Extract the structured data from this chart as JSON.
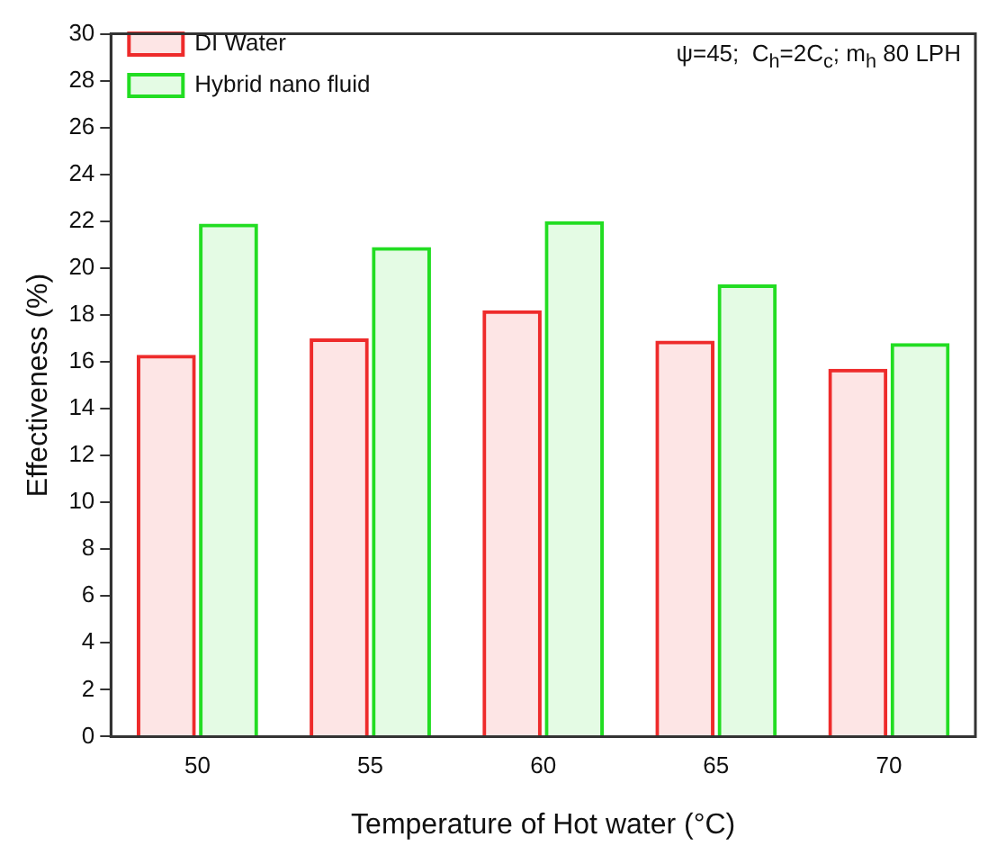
{
  "chart_data": {
    "type": "bar",
    "xlabel": "Temperature of Hot water (°C)",
    "ylabel": "Effectiveness (%)",
    "categories": [
      "50",
      "55",
      "60",
      "65",
      "70"
    ],
    "series": [
      {
        "name": "DI Water",
        "color": "#ee2b2b",
        "values": [
          16.3,
          17.0,
          18.2,
          16.9,
          15.7
        ]
      },
      {
        "name": "Hybrid nano fluid",
        "color": "#22dd22",
        "values": [
          21.9,
          20.9,
          22.0,
          19.3,
          16.8
        ]
      }
    ],
    "ylim": [
      0,
      30
    ],
    "yticks": [
      0,
      2,
      4,
      6,
      8,
      10,
      12,
      14,
      16,
      18,
      20,
      22,
      24,
      26,
      28,
      30
    ],
    "grid": false,
    "legend": "top left",
    "annotations": [
      "ψ=45;  C$_{h}$=2C$_{c}$; m$_{h}$ 80 LPH"
    ]
  }
}
